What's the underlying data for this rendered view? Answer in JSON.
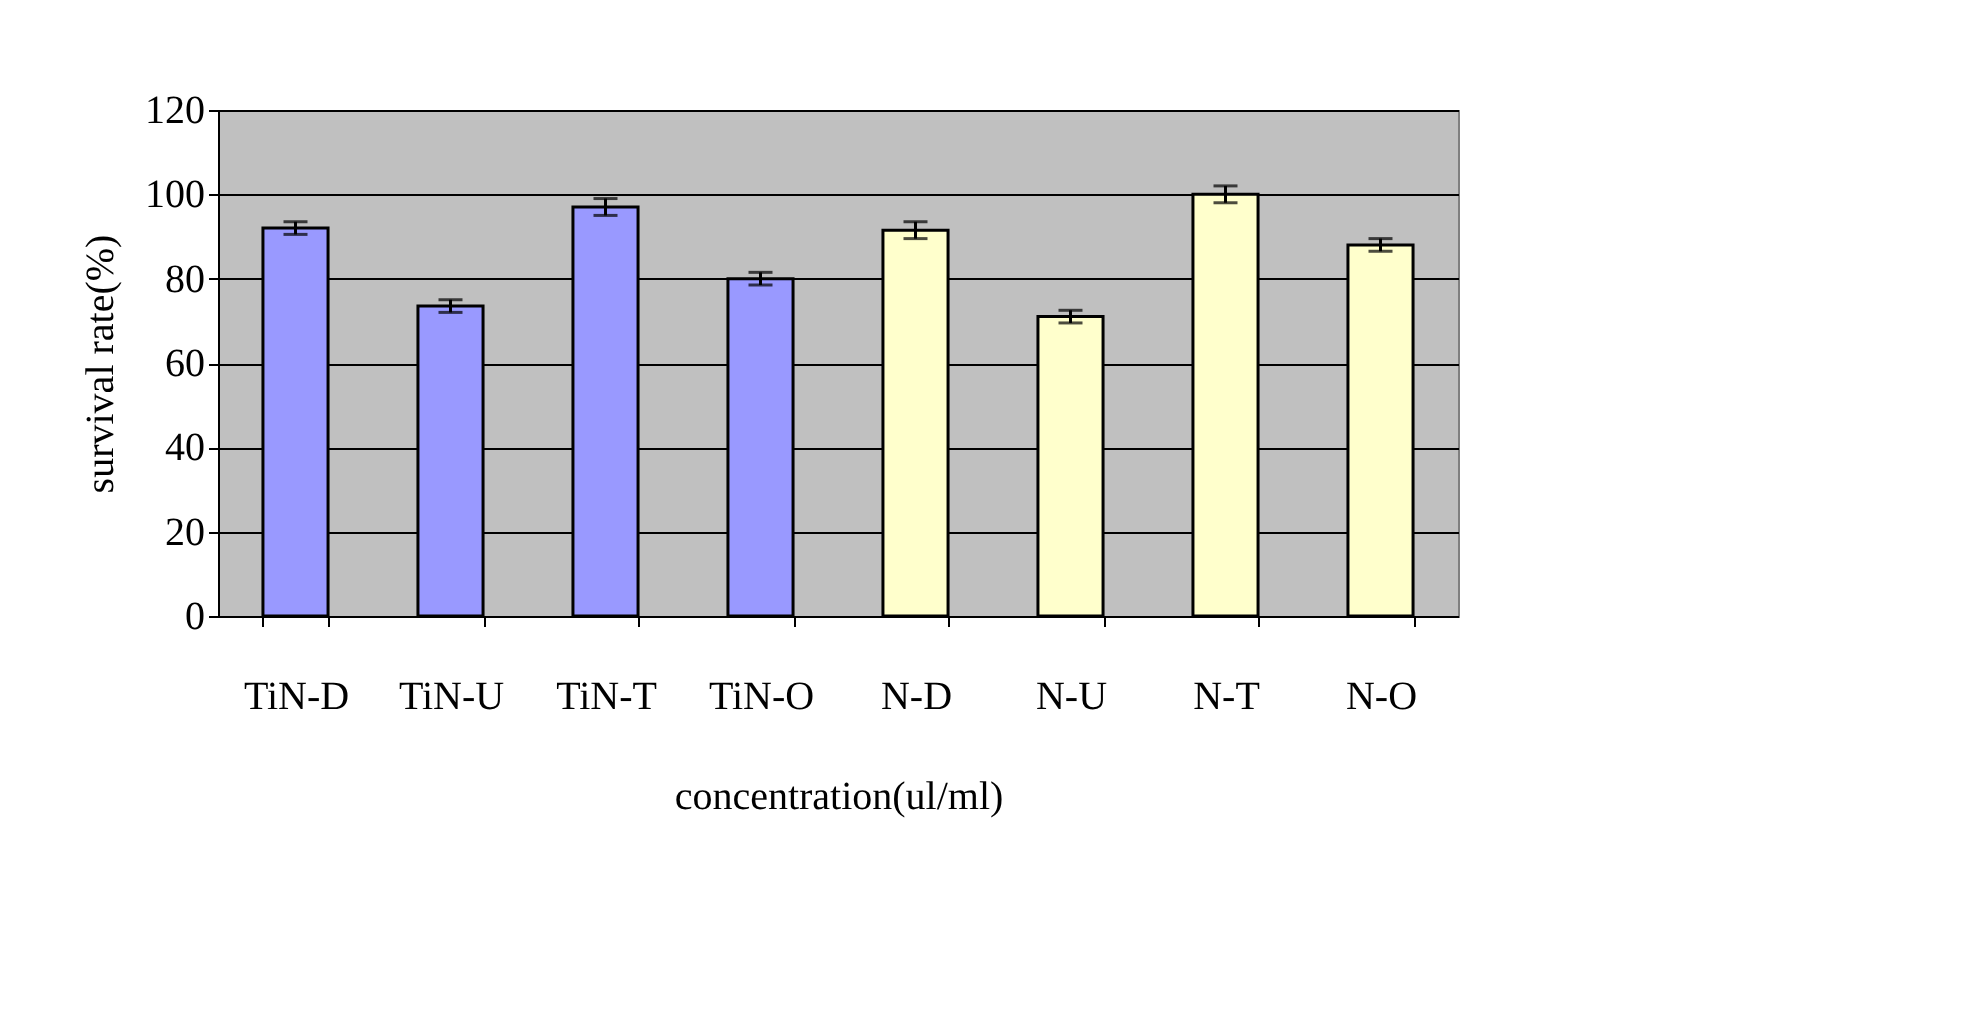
{
  "chart_data": {
    "type": "bar",
    "categories": [
      "TiN-D",
      "TiN-U",
      "TiN-T",
      "TiN-O",
      "N-D",
      "N-U",
      "N-T",
      "N-O"
    ],
    "values": [
      92,
      73.5,
      97,
      80,
      91.5,
      71,
      100,
      88
    ],
    "errors": [
      1.5,
      1.5,
      2,
      1.5,
      2,
      1.5,
      2,
      1.5
    ],
    "colors": [
      "#9999ff",
      "#9999ff",
      "#9999ff",
      "#9999ff",
      "#ffffcc",
      "#ffffcc",
      "#ffffcc",
      "#ffffcc"
    ],
    "xlabel": "concentration(ul/ml)",
    "ylabel": "survival rate(%)",
    "ylim": [
      0,
      120
    ],
    "yticks": [
      0,
      20,
      40,
      60,
      80,
      100,
      120
    ],
    "grid": "y",
    "legend": false
  }
}
